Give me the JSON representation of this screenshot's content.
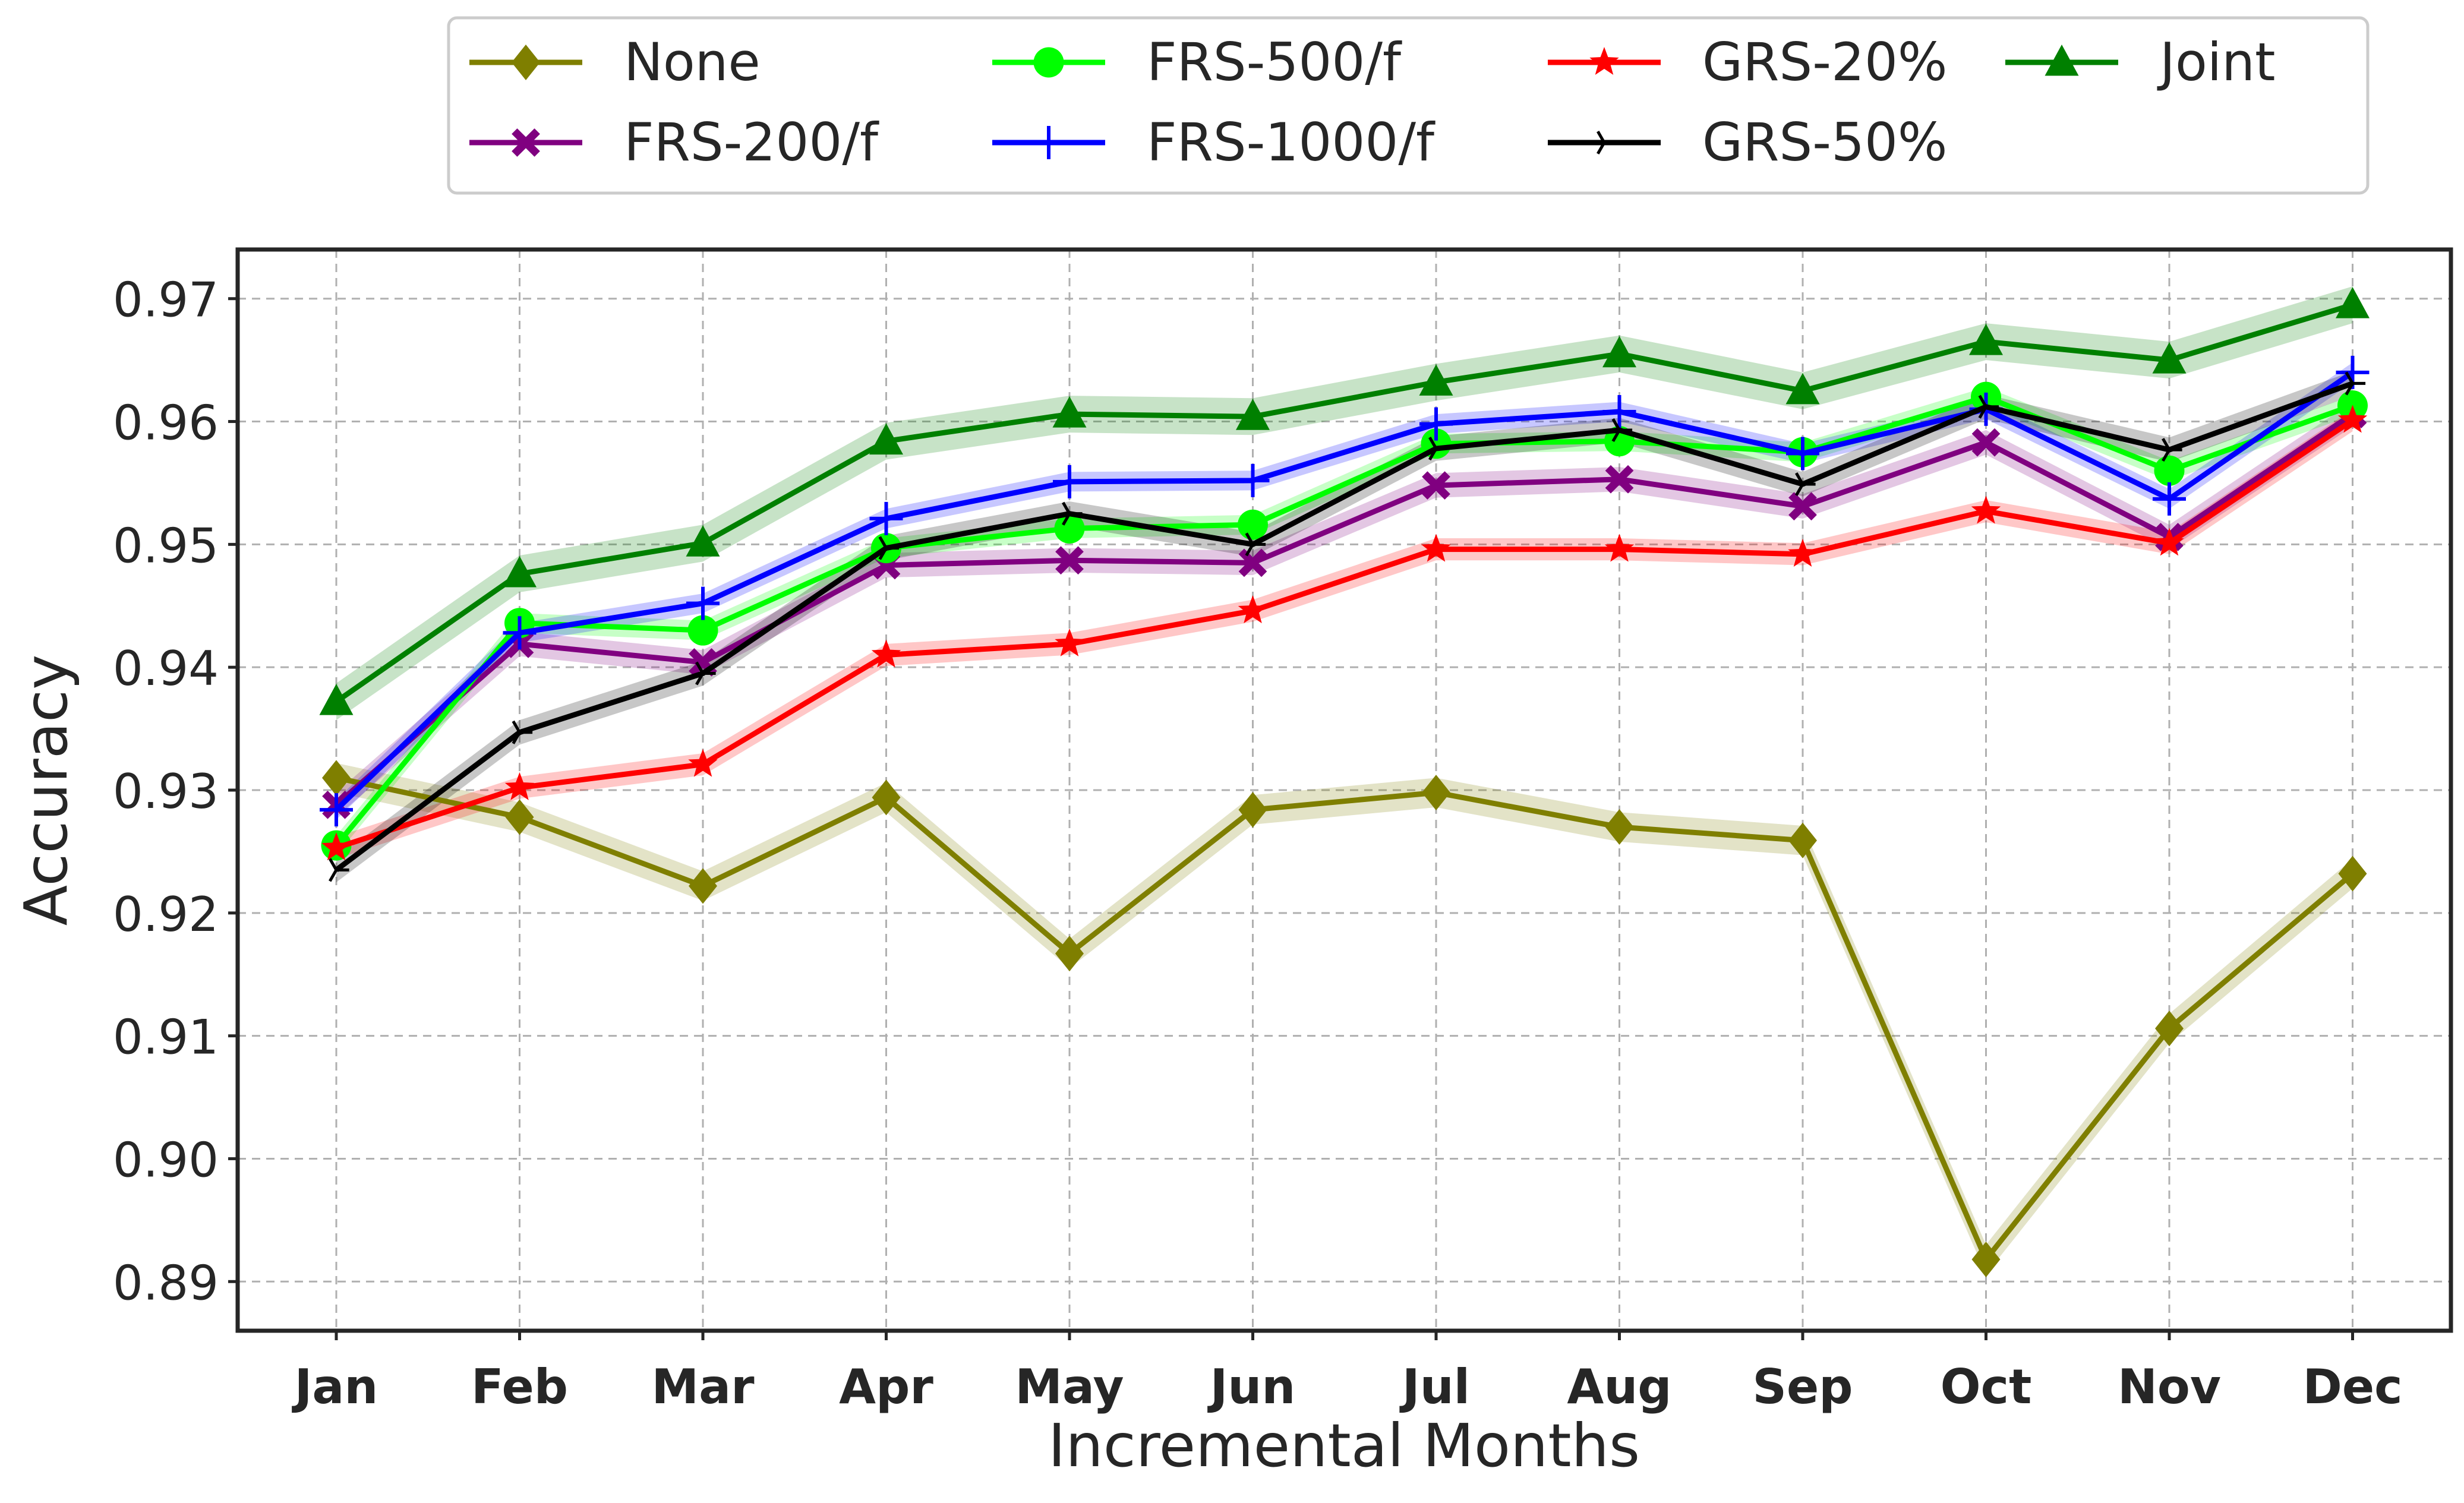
{
  "chart_data": {
    "type": "line",
    "xlabel": "Incremental Months",
    "ylabel": "Accuracy",
    "categories": [
      "Jan",
      "Feb",
      "Mar",
      "Apr",
      "May",
      "Jun",
      "Jul",
      "Aug",
      "Sep",
      "Oct",
      "Nov",
      "Dec"
    ],
    "ylim": [
      0.886,
      0.974
    ],
    "yticks": [
      0.89,
      0.9,
      0.91,
      0.92,
      0.93,
      0.94,
      0.95,
      0.96,
      0.97
    ],
    "ytick_labels": [
      "0.89",
      "0.90",
      "0.91",
      "0.92",
      "0.93",
      "0.94",
      "0.95",
      "0.96",
      "0.97"
    ],
    "grid": true,
    "legend_position": "top-center, above plot, 4 columns",
    "series": [
      {
        "name": "None",
        "color": "#7f7f00",
        "marker": "diamond",
        "values": [
          0.931,
          0.9278,
          0.9222,
          0.9294,
          0.9167,
          0.9284,
          0.9298,
          0.927,
          0.9259,
          0.8918,
          0.9106,
          0.9232
        ],
        "band": 0.0012
      },
      {
        "name": "FRS-200/f",
        "color": "#800080",
        "marker": "x-thick",
        "values": [
          0.9288,
          0.9419,
          0.9404,
          0.9483,
          0.9487,
          0.9485,
          0.9548,
          0.9553,
          0.9531,
          0.9583,
          0.9506,
          0.9606
        ],
        "band": 0.001
      },
      {
        "name": "FRS-500/f",
        "color": "#00ff00",
        "marker": "circle",
        "values": [
          0.9255,
          0.9436,
          0.943,
          0.9497,
          0.9513,
          0.9516,
          0.9582,
          0.9584,
          0.9575,
          0.962,
          0.956,
          0.9613
        ],
        "band": 0.0008
      },
      {
        "name": "FRS-1000/f",
        "color": "#0000ff",
        "marker": "plus",
        "values": [
          0.9284,
          0.9428,
          0.9452,
          0.9521,
          0.9551,
          0.9552,
          0.9598,
          0.9608,
          0.9574,
          0.961,
          0.9537,
          0.964
        ],
        "band": 0.0008
      },
      {
        "name": "GRS-20%",
        "color": "#ff0000",
        "marker": "star",
        "values": [
          0.9253,
          0.9302,
          0.9321,
          0.941,
          0.9419,
          0.9446,
          0.9496,
          0.9496,
          0.9492,
          0.9527,
          0.9501,
          0.9601
        ],
        "band": 0.0009
      },
      {
        "name": "GRS-50%",
        "color": "#000000",
        "marker": "tri-right",
        "values": [
          0.9235,
          0.9347,
          0.9395,
          0.9497,
          0.9525,
          0.95,
          0.9578,
          0.9593,
          0.9549,
          0.9612,
          0.9577,
          0.9631
        ],
        "band": 0.001
      },
      {
        "name": "Joint",
        "color": "#008000",
        "marker": "triangle",
        "values": [
          0.9372,
          0.9476,
          0.9501,
          0.9584,
          0.9606,
          0.9604,
          0.9632,
          0.9655,
          0.9625,
          0.9665,
          0.965,
          0.9695
        ],
        "band": 0.0015
      }
    ]
  }
}
